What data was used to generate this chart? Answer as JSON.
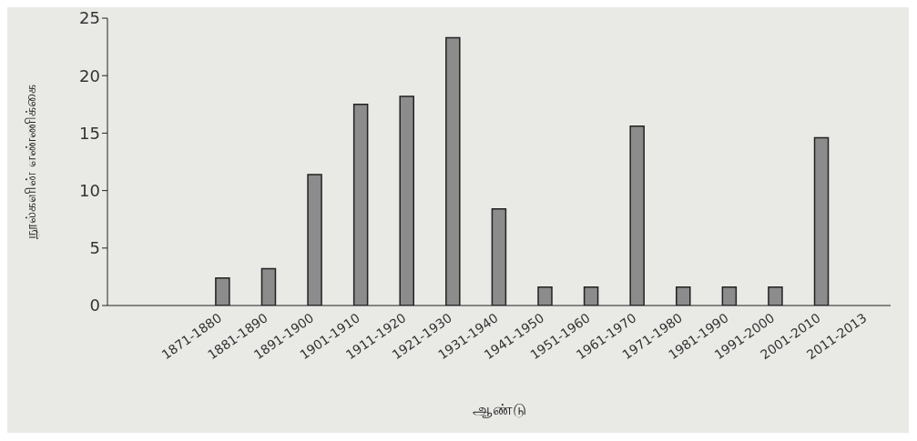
{
  "chart_data": {
    "type": "bar",
    "xlabel": "ஆண்டு",
    "ylabel": "நூல்களின் எண்ணிக்கை",
    "categories": [
      null,
      null,
      "1871-1880",
      "1881-1890",
      "1891-1900",
      "1901-1910",
      "1911-1920",
      "1921-1930",
      "1931-1940",
      "1941-1950",
      "1951-1960",
      "1961-1970",
      "1971-1980",
      "1981-1990",
      "1991-2000",
      "2001-2010",
      "2011-2013"
    ],
    "values": [
      0,
      0,
      2.4,
      3.2,
      11.4,
      17.5,
      18.2,
      23.3,
      8.4,
      1.6,
      1.6,
      15.6,
      1.6,
      1.6,
      1.6,
      14.6,
      0
    ],
    "color": "#8c8c8c",
    "ylim": [
      0,
      25
    ],
    "yticks": [
      0,
      5,
      10,
      15,
      20,
      25
    ],
    "grid": false,
    "legend": false
  }
}
